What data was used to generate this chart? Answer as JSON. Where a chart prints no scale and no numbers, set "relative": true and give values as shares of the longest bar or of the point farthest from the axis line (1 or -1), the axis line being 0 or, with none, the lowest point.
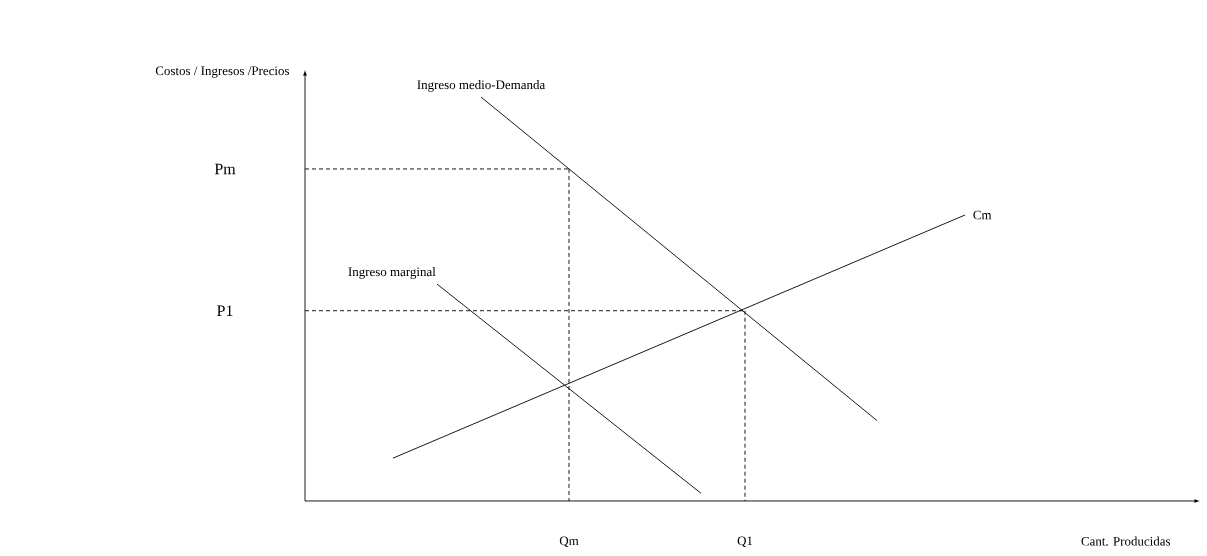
{
  "chart_data": {
    "type": "line",
    "relative": true,
    "xlabel": "Cant. Producidas",
    "ylabel": "Costos / Ingresos /Precios",
    "categories": [
      null,
      null,
      null,
      null,
      null,
      null,
      "Qm",
      null,
      null,
      null,
      "Q1",
      null,
      null,
      null,
      null,
      null,
      null,
      null,
      null,
      null,
      null
    ],
    "annotations": [
      "Pm",
      "P1"
    ],
    "grid": false,
    "marker": "none",
    "series": [
      {
        "name": "Ingreso medio-Demanda",
        "color": "#000000",
        "values": [
          null,
          null,
          null,
          null,
          1.0,
          null,
          null,
          null,
          null,
          null,
          null,
          null,
          null,
          0.199,
          null,
          null,
          null,
          null,
          null,
          null,
          null
        ]
      },
      {
        "name": "Ingreso marginal",
        "color": "#000000",
        "values": [
          null,
          null,
          null,
          0.537,
          null,
          null,
          null,
          null,
          null,
          0.019,
          null,
          null,
          null,
          null,
          null,
          null,
          null,
          null,
          null,
          null,
          null
        ]
      },
      {
        "name": "Cm",
        "color": "#000000",
        "values": [
          null,
          null,
          0.106,
          null,
          null,
          null,
          null,
          null,
          null,
          null,
          null,
          null,
          null,
          null,
          null,
          0.708,
          null,
          null,
          null,
          null,
          null
        ]
      },
      {
        "color": "#000000",
        "line_style": "dashed",
        "values": [
          0.822,
          null,
          null,
          null,
          null,
          null,
          0.822,
          null,
          null,
          null,
          null,
          null,
          null,
          null,
          null,
          null,
          null,
          null,
          null,
          null,
          null
        ]
      },
      {
        "color": "#000000",
        "line_style": "dashed",
        "x": [
          "Qm",
          "Qm"
        ],
        "values": [
          0.822,
          0
        ]
      },
      {
        "color": "#000000",
        "line_style": "dashed",
        "values": [
          0.471,
          null,
          null,
          null,
          null,
          null,
          null,
          null,
          null,
          null,
          0.471,
          null,
          null,
          null,
          null,
          null,
          null,
          null,
          null,
          null,
          null
        ]
      },
      {
        "color": "#000000",
        "line_style": "dashed",
        "x": [
          "Q1",
          "Q1"
        ],
        "values": [
          0.471,
          0
        ]
      }
    ]
  }
}
